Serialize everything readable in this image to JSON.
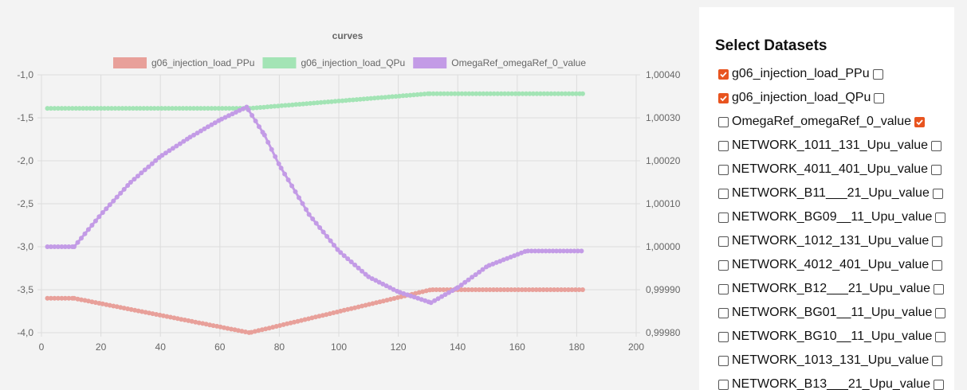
{
  "chart_data": {
    "type": "line",
    "title": "curves",
    "x_ticks": [
      "0",
      "20",
      "40",
      "60",
      "80",
      "100",
      "120",
      "140",
      "160",
      "180",
      "200"
    ],
    "xlim": [
      0,
      200
    ],
    "y_left_ticks": [
      "-1,0",
      "-1,5",
      "-2,0",
      "-2,5",
      "-3,0",
      "-3,5",
      "-4,0"
    ],
    "y_left_lim": [
      -4.0,
      -1.0
    ],
    "y_right_ticks": [
      "1,00040",
      "1,00030",
      "1,00020",
      "1,00010",
      "1,00000",
      "0,99990",
      "0,99980"
    ],
    "y_right_lim": [
      0.9998,
      1.0004
    ],
    "grid": true,
    "legend_position": "top",
    "series": [
      {
        "name": "g06_injection_load_PPu",
        "axis": "left",
        "color": "#e8a09a",
        "x": [
          2,
          11,
          70,
          131,
          182
        ],
        "values": [
          -3.6,
          -3.6,
          -4.0,
          -3.5,
          -3.5
        ]
      },
      {
        "name": "g06_injection_load_QPu",
        "axis": "left",
        "color": "#a3e4b5",
        "x": [
          2,
          70,
          130,
          182
        ],
        "values": [
          -1.39,
          -1.39,
          -1.22,
          -1.22
        ]
      },
      {
        "name": "OmegaRef_omegaRef_0_value",
        "axis": "right",
        "color": "#c39be6",
        "x": [
          2,
          11,
          20,
          30,
          40,
          50,
          60,
          69,
          75,
          80,
          90,
          100,
          110,
          120,
          131,
          140,
          150,
          163,
          182
        ],
        "values": [
          1.0,
          1.0,
          1.000075,
          1.00015,
          1.00021,
          1.000255,
          1.000295,
          1.000325,
          1.00026,
          1.00019,
          1.000075,
          0.99999,
          0.99993,
          0.999895,
          0.99987,
          0.999905,
          0.999955,
          0.99999,
          0.99999
        ]
      }
    ]
  },
  "panel": {
    "title": "Select Datasets",
    "datasets": [
      {
        "label": "g06_injection_load_PPu",
        "left_checked": true,
        "right_checked": false
      },
      {
        "label": "g06_injection_load_QPu",
        "left_checked": true,
        "right_checked": false
      },
      {
        "label": "OmegaRef_omegaRef_0_value",
        "left_checked": false,
        "right_checked": true
      },
      {
        "label": "NETWORK_1011_131_Upu_value",
        "left_checked": false,
        "right_checked": false
      },
      {
        "label": "NETWORK_4011_401_Upu_value",
        "left_checked": false,
        "right_checked": false
      },
      {
        "label": "NETWORK_B11___21_Upu_value",
        "left_checked": false,
        "right_checked": false
      },
      {
        "label": "NETWORK_BG09__11_Upu_value",
        "left_checked": false,
        "right_checked": false
      },
      {
        "label": "NETWORK_1012_131_Upu_value",
        "left_checked": false,
        "right_checked": false
      },
      {
        "label": "NETWORK_4012_401_Upu_value",
        "left_checked": false,
        "right_checked": false
      },
      {
        "label": "NETWORK_B12___21_Upu_value",
        "left_checked": false,
        "right_checked": false
      },
      {
        "label": "NETWORK_BG01__11_Upu_value",
        "left_checked": false,
        "right_checked": false
      },
      {
        "label": "NETWORK_BG10__11_Upu_value",
        "left_checked": false,
        "right_checked": false
      },
      {
        "label": "NETWORK_1013_131_Upu_value",
        "left_checked": false,
        "right_checked": false
      },
      {
        "label": "NETWORK_B13___21_Upu_value",
        "left_checked": false,
        "right_checked": false
      }
    ]
  }
}
